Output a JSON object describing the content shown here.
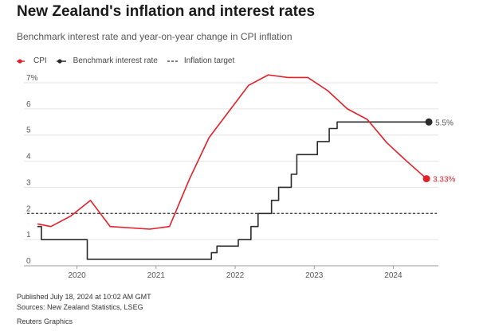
{
  "title": "New Zealand's inflation and interest rates",
  "subtitle": "Benchmark interest rate and year-on-year change in CPI inflation",
  "legend": [
    {
      "label": "CPI",
      "style": "line-dot",
      "color": "#e3202a"
    },
    {
      "label": "Benchmark interest rate",
      "style": "line-dot",
      "color": "#2b2b2b"
    },
    {
      "label": "Inflation target",
      "style": "dashed",
      "color": "#2b2b2b"
    }
  ],
  "footer": {
    "published": "Published July 18, 2024 at 10:02 AM GMT",
    "sources": "Sources: New Zealand Statistics, LSEG",
    "credit": "Reuters Graphics"
  },
  "chart_data": {
    "type": "line",
    "ylim": [
      0,
      7
    ],
    "xlim": [
      2019.5,
      2024.55
    ],
    "yticks": [
      "0",
      "1",
      "2",
      "3",
      "4",
      "5",
      "6",
      "7%"
    ],
    "xticks": [
      {
        "value": 2020,
        "label": "2020"
      },
      {
        "value": 2021,
        "label": "2021"
      },
      {
        "value": 2022,
        "label": "2022"
      },
      {
        "value": 2023,
        "label": "2023"
      },
      {
        "value": 2024,
        "label": "2024"
      }
    ],
    "target_line": {
      "name": "Inflation target",
      "y": 2
    },
    "series": [
      {
        "name": "CPI",
        "color": "#e3202a",
        "step": false,
        "end_label": "3.33%",
        "x": [
          2019.5,
          2019.67,
          2019.92,
          2020.17,
          2020.42,
          2020.92,
          2021.17,
          2021.42,
          2021.67,
          2021.92,
          2022.17,
          2022.42,
          2022.67,
          2022.92,
          2023.17,
          2023.42,
          2023.67,
          2023.92,
          2024.17,
          2024.42
        ],
        "y": [
          1.6,
          1.5,
          1.9,
          2.5,
          1.5,
          1.4,
          1.5,
          3.3,
          4.9,
          5.9,
          6.9,
          7.3,
          7.2,
          7.2,
          6.7,
          6.0,
          5.6,
          4.7,
          4.0,
          3.33
        ]
      },
      {
        "name": "Benchmark interest rate",
        "color": "#2b2b2b",
        "step": true,
        "end_label": "5.5%",
        "x": [
          2019.5,
          2019.55,
          2020.12,
          2020.13,
          2021.7,
          2021.77,
          2021.83,
          2022.04,
          2022.2,
          2022.29,
          2022.46,
          2022.55,
          2022.71,
          2022.78,
          2023.04,
          2023.19,
          2023.29,
          2024.45
        ],
        "y": [
          1.5,
          1.0,
          1.0,
          0.25,
          0.5,
          0.75,
          0.75,
          1.0,
          1.5,
          2.0,
          2.5,
          3.0,
          3.5,
          4.25,
          4.75,
          5.25,
          5.5,
          5.5
        ]
      }
    ]
  }
}
